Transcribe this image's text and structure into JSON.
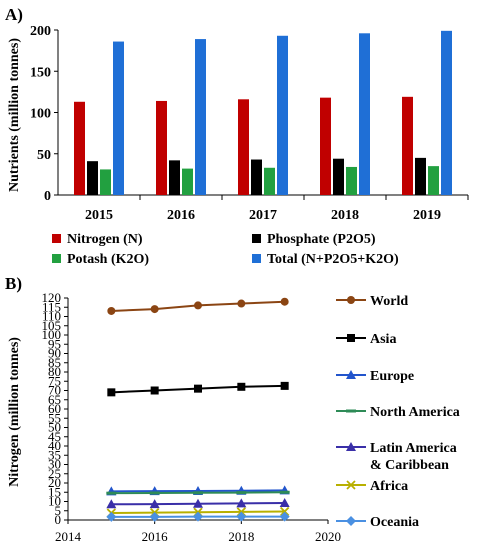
{
  "chart_data": [
    {
      "panel": "A)",
      "type": "bar",
      "ylabel": "Nutrients (million tonnes)",
      "xlabel": "",
      "ylim": [
        0,
        200
      ],
      "yticks": [
        0,
        50,
        100,
        150,
        200
      ],
      "categories": [
        "2015",
        "2016",
        "2017",
        "2018",
        "2019"
      ],
      "series": [
        {
          "name": "Nitrogen (N)",
          "color": "#c00000",
          "values": [
            113,
            114,
            116,
            118,
            119
          ]
        },
        {
          "name": "Phosphate (P2O5)",
          "color": "#000000",
          "values": [
            41,
            42,
            43,
            44,
            45
          ]
        },
        {
          "name": "Potash (K2O)",
          "color": "#22a040",
          "values": [
            31,
            32,
            33,
            34,
            35
          ]
        },
        {
          "name": "Total (N+P2O5+K2O)",
          "color": "#1f6fd6",
          "values": [
            186,
            189,
            193,
            196,
            199
          ]
        }
      ],
      "legend_position": "bottom"
    },
    {
      "panel": "B)",
      "type": "line",
      "ylabel": "Nitrogen (million tonnes)",
      "xlabel": "",
      "xlim": [
        2014,
        2020
      ],
      "xticks": [
        2014,
        2016,
        2018,
        2020
      ],
      "ylim": [
        0,
        120
      ],
      "yticks": [
        0,
        5,
        10,
        15,
        20,
        25,
        30,
        35,
        40,
        45,
        50,
        55,
        60,
        65,
        70,
        75,
        80,
        85,
        90,
        95,
        100,
        105,
        110,
        115,
        120
      ],
      "x": [
        2015,
        2016,
        2017,
        2018,
        2019
      ],
      "series": [
        {
          "name": "World",
          "color": "#8b4513",
          "marker": "circle",
          "values": [
            113,
            114,
            116,
            117,
            118
          ]
        },
        {
          "name": "Asia",
          "color": "#000000",
          "marker": "square",
          "values": [
            69,
            70,
            71,
            72,
            72.5
          ]
        },
        {
          "name": "Europe",
          "color": "#2255cc",
          "marker": "triangle",
          "values": [
            15.5,
            15.6,
            15.7,
            15.8,
            16.0
          ]
        },
        {
          "name": "North America",
          "color": "#2e8b57",
          "marker": "dash",
          "values": [
            14.5,
            14.6,
            14.7,
            14.8,
            15.0
          ]
        },
        {
          "name": "Latin America & Caribbean",
          "color": "#3a2fa8",
          "marker": "triangle",
          "values": [
            8.5,
            8.6,
            8.8,
            9.0,
            9.2
          ]
        },
        {
          "name": "Africa",
          "color": "#b8b000",
          "marker": "x",
          "values": [
            3.8,
            4.0,
            4.2,
            4.4,
            4.6
          ]
        },
        {
          "name": "Oceania",
          "color": "#4a90e2",
          "marker": "diamond",
          "values": [
            1.7,
            1.7,
            1.8,
            1.8,
            1.8
          ]
        }
      ],
      "legend_position": "right"
    }
  ]
}
